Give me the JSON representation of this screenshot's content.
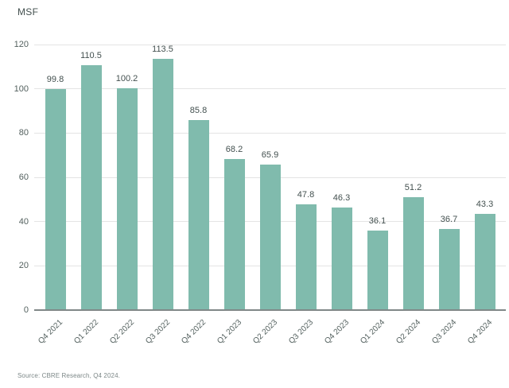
{
  "header": {
    "unit_label": "MSF"
  },
  "footer": {
    "source": "Source: CBRE Research, Q4 2024."
  },
  "colors": {
    "bar": "#80BBAD",
    "grid": "#E4E4E4",
    "axis_line": "#808888",
    "text_dark": "#43504F",
    "text_tick": "#54615F",
    "text_source": "#7D8888"
  },
  "chart_data": {
    "type": "bar",
    "title": "",
    "xlabel": "",
    "ylabel": "MSF",
    "categories": [
      "Q4 2021",
      "Q1 2022",
      "Q2 2022",
      "Q3 2022",
      "Q4 2022",
      "Q1 2023",
      "Q2 2023",
      "Q3 2023",
      "Q4 2023",
      "Q1 2024",
      "Q2 2024",
      "Q3 2024",
      "Q4 2024"
    ],
    "values": [
      99.8,
      110.5,
      100.2,
      113.5,
      85.8,
      68.2,
      65.9,
      47.8,
      46.3,
      36.1,
      51.2,
      36.7,
      43.3
    ],
    "ylim": [
      0,
      120
    ],
    "yticks": [
      0,
      20,
      40,
      60,
      80,
      100,
      120
    ],
    "grid": true,
    "value_labels": true,
    "legend": "none"
  }
}
